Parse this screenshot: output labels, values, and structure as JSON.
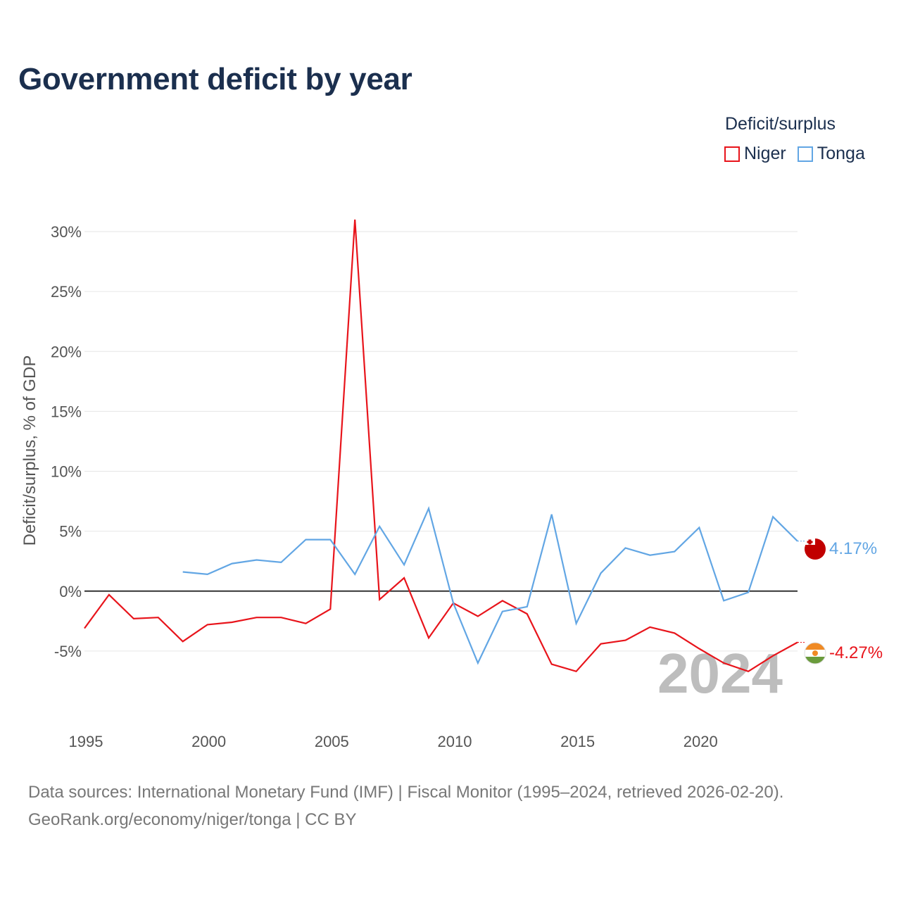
{
  "chart_data": {
    "type": "line",
    "title": "Government deficit by year",
    "ylabel": "Deficit/surplus, % of GDP",
    "xlabel": "",
    "legend_title": "Deficit/surplus",
    "legend_position": "top-right",
    "x_ticks": [
      1995,
      2000,
      2005,
      2010,
      2015,
      2020
    ],
    "y_ticks": [
      -5,
      0,
      5,
      10,
      15,
      20,
      25,
      30
    ],
    "y_tick_labels": [
      "-5%",
      "0%",
      "5%",
      "10%",
      "15%",
      "20%",
      "25%",
      "30%"
    ],
    "xlim": [
      1995,
      2024
    ],
    "ylim": [
      -9,
      31
    ],
    "grid": true,
    "current_year": "2024",
    "series": [
      {
        "name": "Niger",
        "color": "#e8141b",
        "flag": "niger-flag-icon",
        "end_label": "-4.27%",
        "x": [
          1995,
          1996,
          1997,
          1998,
          1999,
          2000,
          2001,
          2002,
          2003,
          2004,
          2005,
          2006,
          2007,
          2008,
          2009,
          2010,
          2011,
          2012,
          2013,
          2014,
          2015,
          2016,
          2017,
          2018,
          2019,
          2020,
          2021,
          2022,
          2023,
          2024
        ],
        "values": [
          -3.1,
          -0.3,
          -2.3,
          -2.2,
          -4.2,
          -2.8,
          -2.6,
          -2.2,
          -2.2,
          -2.7,
          -1.5,
          31.0,
          -0.7,
          1.1,
          -3.9,
          -1.0,
          -2.1,
          -0.8,
          -1.9,
          -6.1,
          -6.7,
          -4.4,
          -4.1,
          -3.0,
          -3.5,
          -4.8,
          -6.0,
          -6.7,
          -5.4,
          -4.27
        ]
      },
      {
        "name": "Tonga",
        "color": "#62a6e4",
        "flag": "tonga-flag-icon",
        "end_label": "4.17%",
        "x": [
          1999,
          2000,
          2001,
          2002,
          2003,
          2004,
          2005,
          2006,
          2007,
          2008,
          2009,
          2010,
          2011,
          2012,
          2013,
          2014,
          2015,
          2016,
          2017,
          2018,
          2019,
          2020,
          2021,
          2022,
          2023,
          2024
        ],
        "values": [
          1.6,
          1.4,
          2.3,
          2.6,
          2.4,
          4.3,
          4.3,
          1.4,
          5.4,
          2.2,
          6.9,
          -1.0,
          -6.0,
          -1.7,
          -1.3,
          6.4,
          -2.7,
          1.5,
          3.6,
          3.0,
          3.3,
          5.3,
          -0.8,
          -0.1,
          6.2,
          4.17
        ]
      }
    ]
  },
  "footer": {
    "sources": "Data sources: International Monetary Fund (IMF) | Fiscal Monitor (1995–2024, retrieved 2026-02-20).",
    "attribution": "GeoRank.org/economy/niger/tonga | CC BY"
  }
}
